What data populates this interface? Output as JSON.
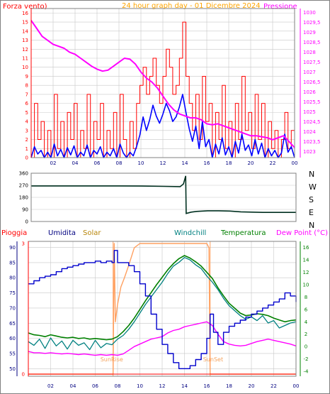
{
  "colors": {
    "wind": "#ff0000",
    "pressure": "#ff00ff",
    "rain": "#ff0000",
    "humidity": "#0000cc",
    "solar": "#ffa060",
    "windchill": "#008080",
    "temperature": "#008000",
    "dewpoint": "#ff00ff",
    "gust": "#0000ff",
    "direction": "#003020",
    "title": "#ffa500",
    "frame": "#808080",
    "grid": "#c8c8c8"
  },
  "chart_data": [
    {
      "type": "line",
      "title": "24 hour graph day - 01 Dicembre 2024",
      "left_label": "Forza vento)",
      "right_label": "Pressione",
      "x_ticks": [
        "02",
        "04",
        "06",
        "08",
        "10",
        "12",
        "14",
        "16",
        "18",
        "20",
        "22",
        "00"
      ],
      "y_left_ticks": [
        "0",
        "1",
        "2",
        "3",
        "4",
        "5",
        "6",
        "7",
        "8",
        "9",
        "10",
        "11",
        "12",
        "13",
        "14",
        "15",
        "16"
      ],
      "y_right_ticks": [
        "1023",
        "1023,5",
        "1024",
        "1024,5",
        "1025",
        "1025,5",
        "1026",
        "1026,5",
        "1027",
        "1027,5",
        "1028",
        "1028,5",
        "1029",
        "1029,5",
        "1030"
      ],
      "ylim_left": [
        0,
        16.5
      ],
      "ylim_right": [
        1022.7,
        1030.2
      ],
      "grid": true,
      "series": [
        {
          "key": "wind_gust",
          "x": [
            0,
            0.3,
            0.6,
            0.9,
            1.2,
            1.5,
            1.8,
            2.1,
            2.4,
            2.7,
            3,
            3.3,
            3.6,
            3.9,
            4.2,
            4.5,
            4.8,
            5.1,
            5.4,
            5.7,
            6,
            6.3,
            6.6,
            6.9,
            7.2,
            7.5,
            7.8,
            8.1,
            8.4,
            8.7,
            9,
            9.3,
            9.6,
            9.9,
            10.2,
            10.5,
            10.8,
            11.1,
            11.4,
            11.7,
            12,
            12.3,
            12.6,
            12.9,
            13.2,
            13.5,
            13.8,
            14.1,
            14.4,
            14.7,
            15,
            15.3,
            15.6,
            15.9,
            16.2,
            16.5,
            16.8,
            17.1,
            17.4,
            17.7,
            18,
            18.3,
            18.6,
            18.9,
            19.2,
            19.5,
            19.8,
            20.1,
            20.4,
            20.7,
            21,
            21.3,
            21.6,
            21.9,
            22.2,
            22.5,
            22.8,
            23.1,
            23.4,
            23.7,
            24
          ],
          "y": [
            0,
            6,
            2,
            4,
            0,
            3,
            0,
            7,
            1,
            4,
            0,
            5,
            2,
            6,
            0,
            3,
            1,
            7,
            0,
            4,
            2,
            6,
            0,
            3,
            1,
            5,
            0,
            7,
            2,
            0,
            4,
            1,
            6,
            8,
            10,
            7,
            9,
            11,
            8,
            6,
            9,
            12,
            10,
            7,
            8,
            11,
            15,
            9,
            6,
            3,
            7,
            2,
            9,
            4,
            6,
            0,
            5,
            2,
            8,
            1,
            4,
            0,
            6,
            2,
            9,
            3,
            5,
            1,
            7,
            2,
            6,
            0,
            4,
            1,
            3,
            0,
            2,
            5,
            1,
            3,
            0
          ],
          "draw": "step"
        },
        {
          "key": "wind_avg",
          "x": [
            0,
            0.3,
            0.6,
            0.9,
            1.2,
            1.5,
            1.8,
            2.1,
            2.4,
            2.7,
            3,
            3.3,
            3.6,
            3.9,
            4.2,
            4.5,
            4.8,
            5.1,
            5.4,
            5.7,
            6,
            6.3,
            6.6,
            6.9,
            7.2,
            7.5,
            7.8,
            8.1,
            8.4,
            8.7,
            9,
            9.3,
            9.6,
            9.9,
            10.2,
            10.5,
            10.8,
            11.1,
            11.4,
            11.7,
            12,
            12.3,
            12.6,
            12.9,
            13.2,
            13.5,
            13.8,
            14.1,
            14.4,
            14.7,
            15,
            15.3,
            15.6,
            15.9,
            16.2,
            16.5,
            16.8,
            17.1,
            17.4,
            17.7,
            18,
            18.3,
            18.6,
            18.9,
            19.2,
            19.5,
            19.8,
            20.1,
            20.4,
            20.7,
            21,
            21.3,
            21.6,
            21.9,
            22.2,
            22.5,
            22.8,
            23.1,
            23.4,
            23.7,
            24
          ],
          "y": [
            0,
            1.2,
            0.4,
            0.8,
            0,
            0.6,
            0,
            1.5,
            0.2,
            0.9,
            0,
            1.1,
            0.3,
            1.3,
            0,
            0.6,
            0.2,
            1.4,
            0,
            0.8,
            0.4,
            1.2,
            0,
            0.6,
            0.2,
            1,
            0,
            1.5,
            0.5,
            0,
            0.6,
            0.2,
            1.2,
            2.5,
            4.5,
            3,
            4.2,
            5.8,
            4.6,
            3.8,
            4.8,
            6,
            5.2,
            4,
            4.5,
            5.6,
            7,
            5,
            3.2,
            1.8,
            3.5,
            1,
            4,
            1.2,
            2,
            0,
            1.5,
            0.4,
            2.2,
            0.3,
            1.2,
            0,
            1.8,
            0.5,
            2.6,
            0.8,
            1.4,
            0.2,
            2,
            0.4,
            1.6,
            0,
            1,
            0.2,
            0.8,
            0,
            0.5,
            2.6,
            0.6,
            1.2,
            0
          ],
          "draw": "line"
        },
        {
          "key": "pressure",
          "axis": "right",
          "x": [
            0,
            0.5,
            1,
            1.5,
            2,
            2.5,
            3,
            3.5,
            4,
            4.5,
            5,
            5.5,
            6,
            6.5,
            7,
            7.5,
            8,
            8.5,
            9,
            9.5,
            10,
            10.5,
            11,
            11.5,
            12,
            12.5,
            13,
            13.5,
            14,
            14.5,
            15,
            15.5,
            16,
            16.5,
            17,
            17.5,
            18,
            18.5,
            19,
            19.5,
            20,
            20.5,
            21,
            21.5,
            22,
            22.5,
            23,
            23.5,
            24
          ],
          "y": [
            1029.6,
            1029.2,
            1028.8,
            1028.6,
            1028.4,
            1028.3,
            1028.2,
            1028.0,
            1027.9,
            1027.7,
            1027.5,
            1027.3,
            1027.15,
            1027.05,
            1027.1,
            1027.3,
            1027.5,
            1027.7,
            1027.65,
            1027.4,
            1027.0,
            1026.7,
            1026.5,
            1026.2,
            1025.8,
            1025.4,
            1025.1,
            1024.9,
            1024.8,
            1024.7,
            1024.7,
            1024.6,
            1024.4,
            1024.35,
            1024.4,
            1024.3,
            1024.2,
            1024.1,
            1024.0,
            1023.9,
            1023.8,
            1023.8,
            1023.75,
            1023.7,
            1023.6,
            1023.7,
            1023.8,
            1023.5,
            1023.2
          ],
          "draw": "line"
        }
      ]
    },
    {
      "type": "line",
      "title": "",
      "y_ticks": [
        "0",
        "90",
        "180",
        "270",
        "360"
      ],
      "ylim": [
        0,
        360
      ],
      "direction_labels": [
        "N",
        "W",
        "S",
        "E",
        "N"
      ],
      "grid": true,
      "series": [
        {
          "key": "wind_direction",
          "x": [
            0,
            2,
            4,
            6,
            8,
            10,
            12,
            13.5,
            13.8,
            14,
            14.05,
            14.5,
            15,
            16,
            17,
            18,
            19,
            20,
            21,
            22,
            23,
            24
          ],
          "y": [
            265,
            265,
            265,
            265,
            265,
            264,
            262,
            260,
            280,
            340,
            60,
            70,
            75,
            80,
            80,
            78,
            72,
            70,
            68,
            68,
            68,
            68
          ],
          "draw": "line"
        }
      ]
    },
    {
      "type": "line",
      "title": "",
      "header_labels": {
        "rain": "Pioggia",
        "humidity": "Umidita",
        "solar": "Solar",
        "windchill": "Windchill",
        "temperature": "Temperatura",
        "dewpoint": "Dew Point (°C)"
      },
      "x_ticks": [
        "02",
        "04",
        "06",
        "08",
        "10",
        "12",
        "14",
        "16",
        "18",
        "20",
        "22",
        "00"
      ],
      "y_left_ticks": [
        "50",
        "55",
        "60",
        "65",
        "70",
        "75",
        "80",
        "85",
        "90"
      ],
      "y_right_ticks": [
        "-4",
        "-2",
        "0",
        "2",
        "4",
        "6",
        "8",
        "10",
        "12",
        "14",
        "16"
      ],
      "rain_ticks": [
        "0",
        "3"
      ],
      "ylim_left": [
        47.5,
        92
      ],
      "ylim_right": [
        -4.8,
        17
      ],
      "annotations": {
        "sunrise": "SunRise",
        "sunset": "SunSet"
      },
      "sunrise_hour": 7.6,
      "sunset_hour": 16.3,
      "grid": true,
      "series": [
        {
          "key": "humidity",
          "axis": "left",
          "x": [
            0,
            0.5,
            1,
            1.5,
            2,
            2.5,
            3,
            3.5,
            4,
            4.5,
            5,
            5.5,
            6,
            6.5,
            7,
            7.5,
            7.7,
            8,
            8.5,
            9,
            9.5,
            10,
            10.5,
            11,
            11.5,
            12,
            12.5,
            13,
            13.5,
            14,
            14.5,
            15,
            15.5,
            16,
            16.3,
            16.6,
            17,
            17.5,
            18,
            18.5,
            19,
            19.5,
            20,
            20.5,
            21,
            21.5,
            22,
            22.5,
            23,
            23.5,
            24
          ],
          "y": [
            78,
            79,
            80,
            80.5,
            81,
            82,
            83,
            83.5,
            84,
            84.5,
            85,
            85,
            85.5,
            85,
            85.5,
            85,
            89,
            85,
            85,
            84,
            82,
            78,
            74,
            68,
            63,
            58,
            55,
            52,
            50,
            50,
            51,
            53,
            55,
            60,
            68,
            62,
            58,
            62,
            64,
            65,
            66,
            67,
            68,
            69,
            70,
            71,
            72,
            73,
            75,
            74,
            72
          ],
          "draw": "step"
        },
        {
          "key": "solar",
          "axis": "rain",
          "x": [
            0,
            7.6,
            7.7,
            7.8,
            8,
            8.3,
            8.6,
            9,
            9.5,
            10,
            11,
            12,
            13,
            14,
            15,
            16,
            16.2,
            16.3,
            24
          ],
          "y": [
            0,
            0,
            3,
            1.2,
            1.6,
            2,
            2.2,
            2.5,
            2.9,
            3,
            3,
            3,
            3,
            3,
            3,
            3,
            2.9,
            0,
            0
          ],
          "draw": "line"
        },
        {
          "key": "temperature",
          "axis": "right",
          "x": [
            0,
            0.5,
            1,
            1.5,
            2,
            2.5,
            3,
            3.5,
            4,
            4.5,
            5,
            5.5,
            6,
            6.5,
            7,
            7.5,
            8,
            8.5,
            9,
            9.5,
            10,
            10.5,
            11,
            11.5,
            12,
            12.5,
            13,
            13.5,
            14,
            14.5,
            15,
            15.5,
            16,
            16.5,
            17,
            17.5,
            18,
            18.5,
            19,
            19.5,
            20,
            20.5,
            21,
            21.5,
            22,
            22.5,
            23,
            23.5,
            24
          ],
          "y": [
            2.2,
            1.9,
            1.8,
            1.6,
            1.9,
            1.7,
            1.5,
            1.4,
            1.5,
            1.3,
            1.4,
            1.2,
            1.3,
            1.2,
            1.1,
            1.2,
            1.6,
            2.4,
            3.4,
            4.6,
            6,
            7.4,
            8.7,
            10,
            11.2,
            12.4,
            13.4,
            14.2,
            14.7,
            14.3,
            13.7,
            13,
            12,
            11,
            9.5,
            8.2,
            7,
            6.2,
            5.4,
            5,
            5.1,
            5.3,
            5.2,
            5,
            4.6,
            4.3,
            4,
            4.2,
            4.3
          ],
          "draw": "line"
        },
        {
          "key": "windchill",
          "axis": "right",
          "x": [
            0,
            0.5,
            1,
            1.5,
            2,
            2.5,
            3,
            3.5,
            4,
            4.5,
            5,
            5.5,
            6,
            6.5,
            7,
            7.5,
            8,
            8.5,
            9,
            9.5,
            10,
            10.5,
            11,
            11.5,
            12,
            12.5,
            13,
            13.5,
            14,
            14.5,
            15,
            15.5,
            16,
            16.5,
            17,
            17.5,
            18,
            18.5,
            19,
            19.5,
            20,
            20.5,
            21,
            21.5,
            22,
            22.5,
            23,
            23.5,
            24
          ],
          "y": [
            0.8,
            0.2,
            1.2,
            -0.3,
            1.4,
            0.1,
            0.9,
            -0.4,
            1,
            0.2,
            0.6,
            -0.5,
            1,
            -0.2,
            0.5,
            0.3,
            1.2,
            1.8,
            2.8,
            4,
            5.4,
            6.8,
            8,
            9.2,
            10.4,
            11.8,
            13,
            13.6,
            14.4,
            14,
            13.2,
            12.6,
            11.4,
            10.4,
            9.2,
            7.8,
            6.6,
            5.8,
            5,
            4.4,
            4.8,
            4.2,
            5,
            3.8,
            4.2,
            3,
            3.4,
            3.8,
            4
          ],
          "draw": "line"
        },
        {
          "key": "dewpoint",
          "axis": "right",
          "x": [
            0,
            0.5,
            1,
            1.5,
            2,
            2.5,
            3,
            3.5,
            4,
            4.5,
            5,
            5.5,
            6,
            6.5,
            7,
            7.5,
            8,
            8.5,
            9,
            9.5,
            10,
            10.5,
            11,
            11.5,
            12,
            12.5,
            13,
            13.5,
            14,
            14.5,
            15,
            15.5,
            16,
            16.5,
            17,
            17.5,
            18,
            18.5,
            19,
            19.5,
            20,
            20.5,
            21,
            21.5,
            22,
            22.5,
            23,
            23.5,
            24
          ],
          "y": [
            -0.8,
            -1,
            -1,
            -1.1,
            -1,
            -1.1,
            -1.2,
            -1.1,
            -1.2,
            -1.3,
            -1.2,
            -1.3,
            -1.4,
            -1.3,
            -1.4,
            -1.3,
            -1.4,
            -1.2,
            -0.6,
            0,
            0.4,
            0.8,
            1.2,
            1.4,
            1.6,
            2.2,
            2.6,
            2.8,
            3.2,
            3.4,
            3.6,
            3.8,
            4,
            3.4,
            2,
            0.8,
            0.4,
            0.2,
            0.1,
            0.2,
            0.5,
            0.8,
            1,
            1.2,
            1,
            0.8,
            0.6,
            0.4,
            0.1
          ],
          "draw": "line"
        }
      ]
    }
  ]
}
